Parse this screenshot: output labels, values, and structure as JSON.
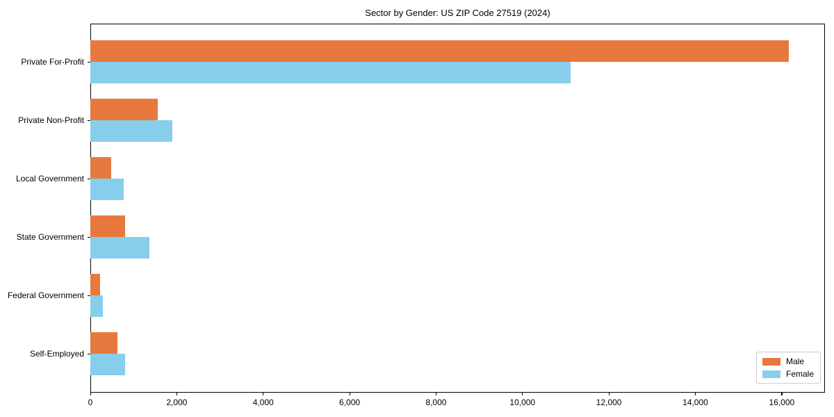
{
  "chart_data": {
    "type": "bar",
    "orientation": "horizontal",
    "title": "Sector by Gender: US ZIP Code 27519 (2024)",
    "categories": [
      "Private For-Profit",
      "Private Non-Profit",
      "Local Government",
      "State Government",
      "Federal Government",
      "Self-Employed"
    ],
    "series": [
      {
        "name": "Male",
        "color": "#E8793E",
        "values": [
          16170,
          1560,
          480,
          810,
          230,
          620
        ]
      },
      {
        "name": "Female",
        "color": "#87CEEB",
        "values": [
          11120,
          1900,
          780,
          1370,
          290,
          800
        ]
      }
    ],
    "xlabel": "",
    "ylabel": "",
    "xlim": [
      0,
      17000
    ],
    "xticks": [
      0,
      2000,
      4000,
      6000,
      8000,
      10000,
      12000,
      14000,
      16000
    ],
    "xtick_labels": [
      "0",
      "2,000",
      "4,000",
      "6,000",
      "8,000",
      "10,000",
      "12,000",
      "14,000",
      "16,000"
    ],
    "legend_position": "lower right",
    "grid": false,
    "colors": {
      "axis": "#000000",
      "text": "#000000",
      "legend_border": "#cccccc",
      "background": "#ffffff"
    }
  }
}
